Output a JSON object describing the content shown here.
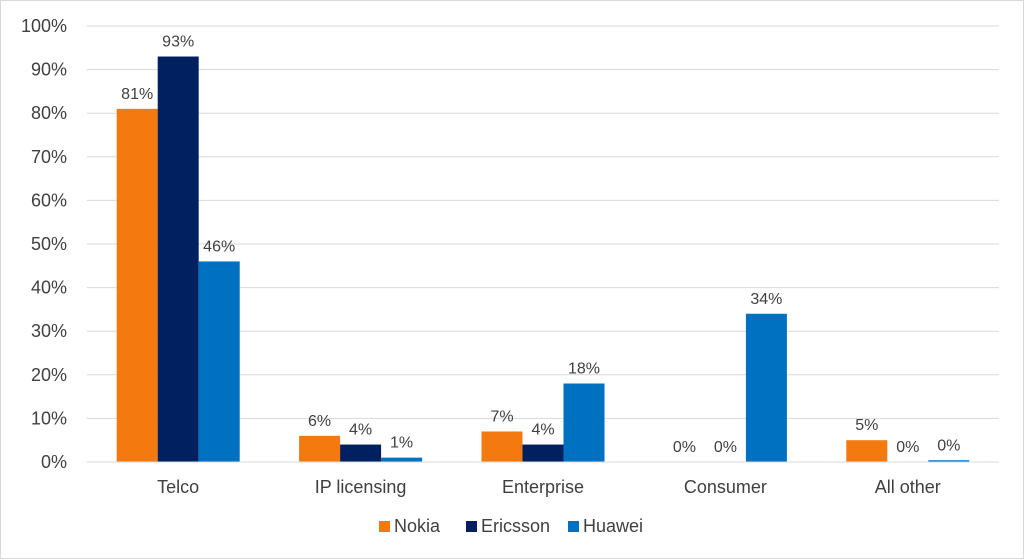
{
  "chart_data": {
    "type": "bar",
    "categories": [
      "Telco",
      "IP licensing",
      "Enterprise",
      "Consumer",
      "All other"
    ],
    "series": [
      {
        "name": "Nokia",
        "values": [
          81,
          6,
          7,
          0,
          5
        ],
        "labels": [
          "81%",
          "6%",
          "7%",
          "0%",
          "5%"
        ],
        "color": "#f47a10"
      },
      {
        "name": "Ericsson",
        "values": [
          93,
          4,
          4,
          0,
          0
        ],
        "labels": [
          "93%",
          "4%",
          "4%",
          "0%",
          "0%"
        ],
        "color": "#002060"
      },
      {
        "name": "Huawei",
        "values": [
          46,
          1,
          18,
          34,
          0.4
        ],
        "labels": [
          "46%",
          "1%",
          "18%",
          "34%",
          "0%"
        ],
        "color": "#0070c0"
      }
    ],
    "y_ticks": [
      "0%",
      "10%",
      "20%",
      "30%",
      "40%",
      "50%",
      "60%",
      "70%",
      "80%",
      "90%",
      "100%"
    ],
    "ylim": [
      0,
      100
    ],
    "title": "",
    "xlabel": "",
    "ylabel": "",
    "grid": true,
    "legend_position": "bottom",
    "gridline_color": "#d9d9d9"
  }
}
